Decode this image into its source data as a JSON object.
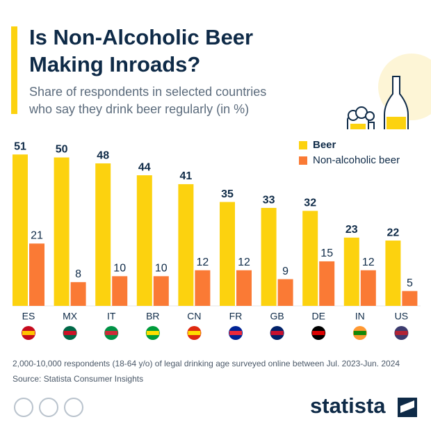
{
  "chart_data": {
    "type": "bar",
    "title": [
      "Is Non-Alcoholic Beer",
      "Making Inroads?"
    ],
    "subtitle": [
      "Share of respondents in selected countries",
      "who say they drink beer regularly (in %)"
    ],
    "categories": [
      "ES",
      "MX",
      "IT",
      "BR",
      "CN",
      "FR",
      "GB",
      "DE",
      "IN",
      "US"
    ],
    "series": [
      {
        "name": "Beer",
        "color": "#fcd20f",
        "values": [
          51,
          50,
          48,
          44,
          41,
          35,
          33,
          32,
          23,
          22
        ]
      },
      {
        "name": "Non-alcoholic beer",
        "color": "#fa7a35",
        "values": [
          21,
          8,
          10,
          10,
          12,
          12,
          9,
          15,
          12,
          5
        ]
      }
    ],
    "note": "2,000-10,000 respondents (18-64 y/o) of legal drinking age surveyed online between Jul. 2023-Jun. 2024",
    "source": "Source: Statista Consumer Insights",
    "logo": "statista"
  }
}
